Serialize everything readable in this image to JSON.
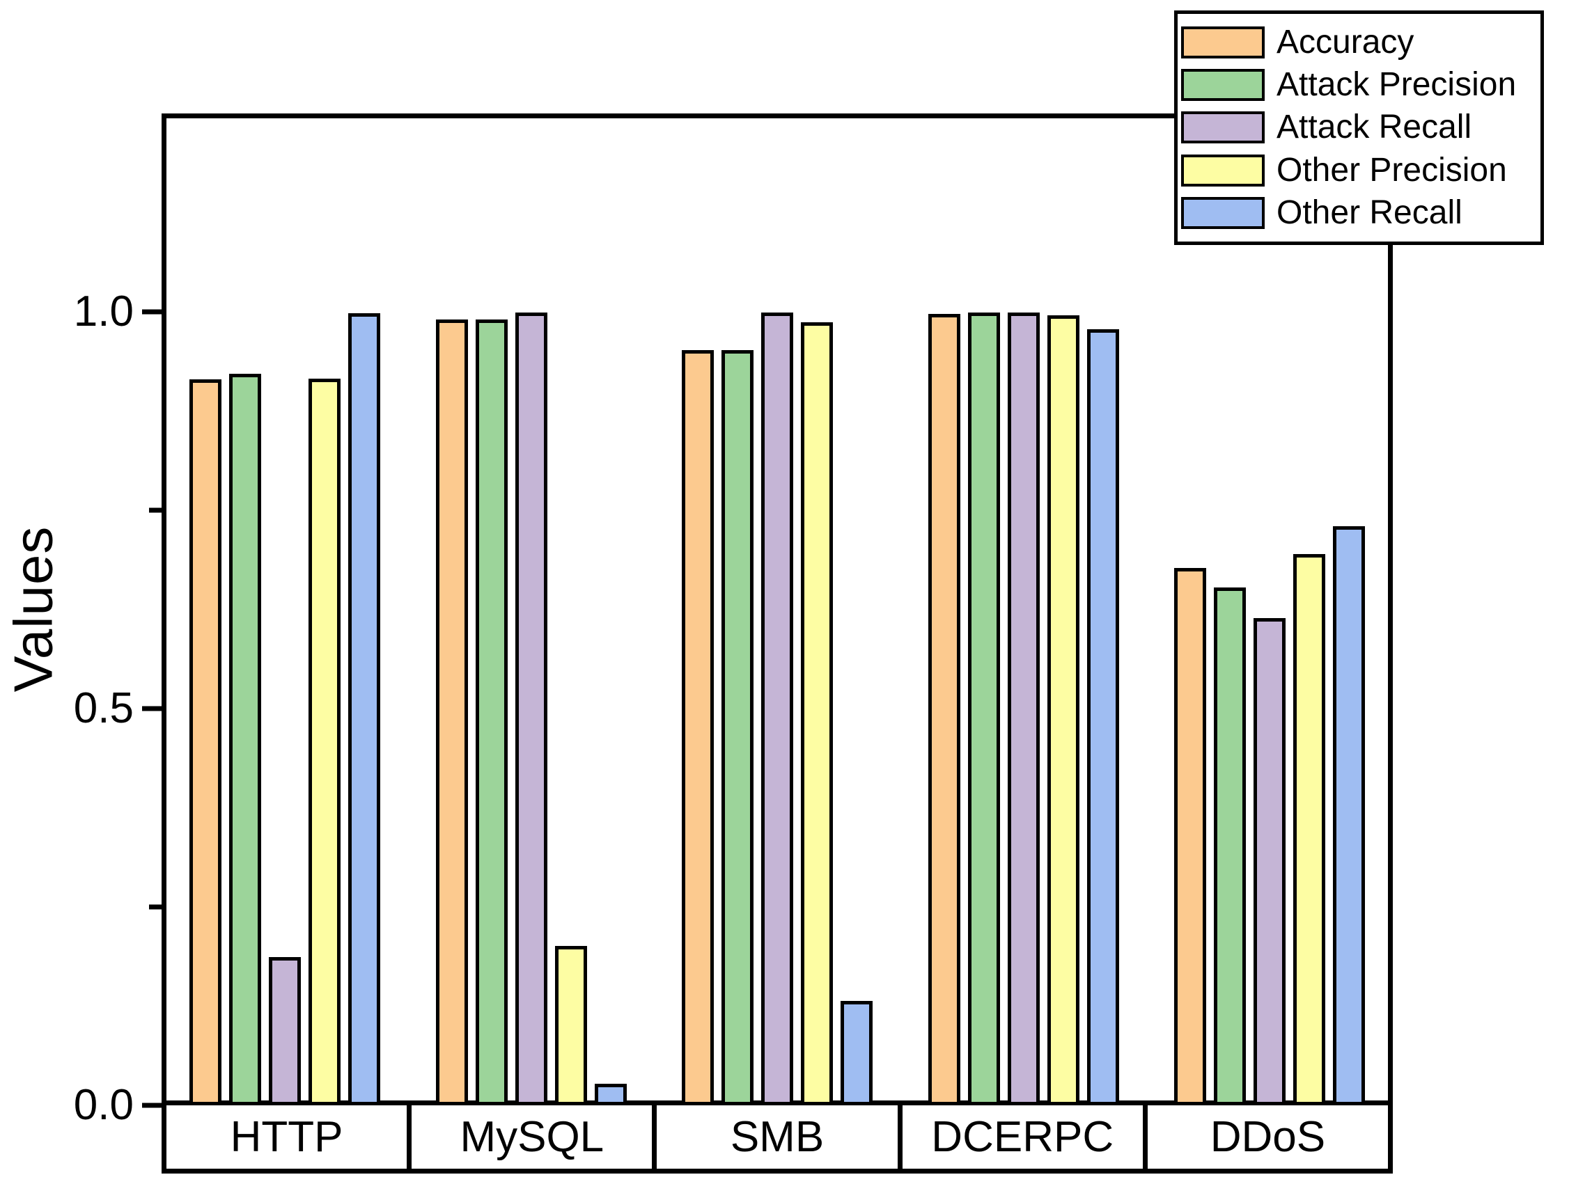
{
  "chart_data": {
    "type": "bar",
    "title": "",
    "xlabel": "",
    "ylabel": "Values",
    "categories": [
      "HTTP",
      "MySQL",
      "SMB",
      "DCERPC",
      "DDoS"
    ],
    "series": [
      {
        "name": "Accuracy",
        "color": "#FCCA8F",
        "values": [
          0.915,
          0.99,
          0.952,
          0.997,
          0.677
        ]
      },
      {
        "name": "Attack Precision",
        "color": "#9CD49A",
        "values": [
          0.922,
          0.99,
          0.952,
          0.999,
          0.653
        ]
      },
      {
        "name": "Attack Recall",
        "color": "#C5B5D6",
        "values": [
          0.187,
          0.999,
          0.999,
          0.999,
          0.614
        ]
      },
      {
        "name": "Other Precision",
        "color": "#FDFDA3",
        "values": [
          0.916,
          0.201,
          0.987,
          0.996,
          0.695
        ]
      },
      {
        "name": "Other Recall",
        "color": "#9FBDF2",
        "values": [
          0.998,
          0.027,
          0.132,
          0.978,
          0.73
        ]
      }
    ],
    "ylim": [
      0.0,
      1.25
    ],
    "yticks_major": [
      {
        "value": 0.0,
        "label": "0.0"
      },
      {
        "value": 0.5,
        "label": "0.5"
      },
      {
        "value": 1.0,
        "label": "1.0"
      }
    ],
    "yticks_minor": [
      0.25,
      0.75
    ],
    "legend_position": "top-right",
    "grid": false,
    "bar_edge_color": "#000000",
    "axis_color": "#000000",
    "background_color": "#FFFFFF"
  }
}
